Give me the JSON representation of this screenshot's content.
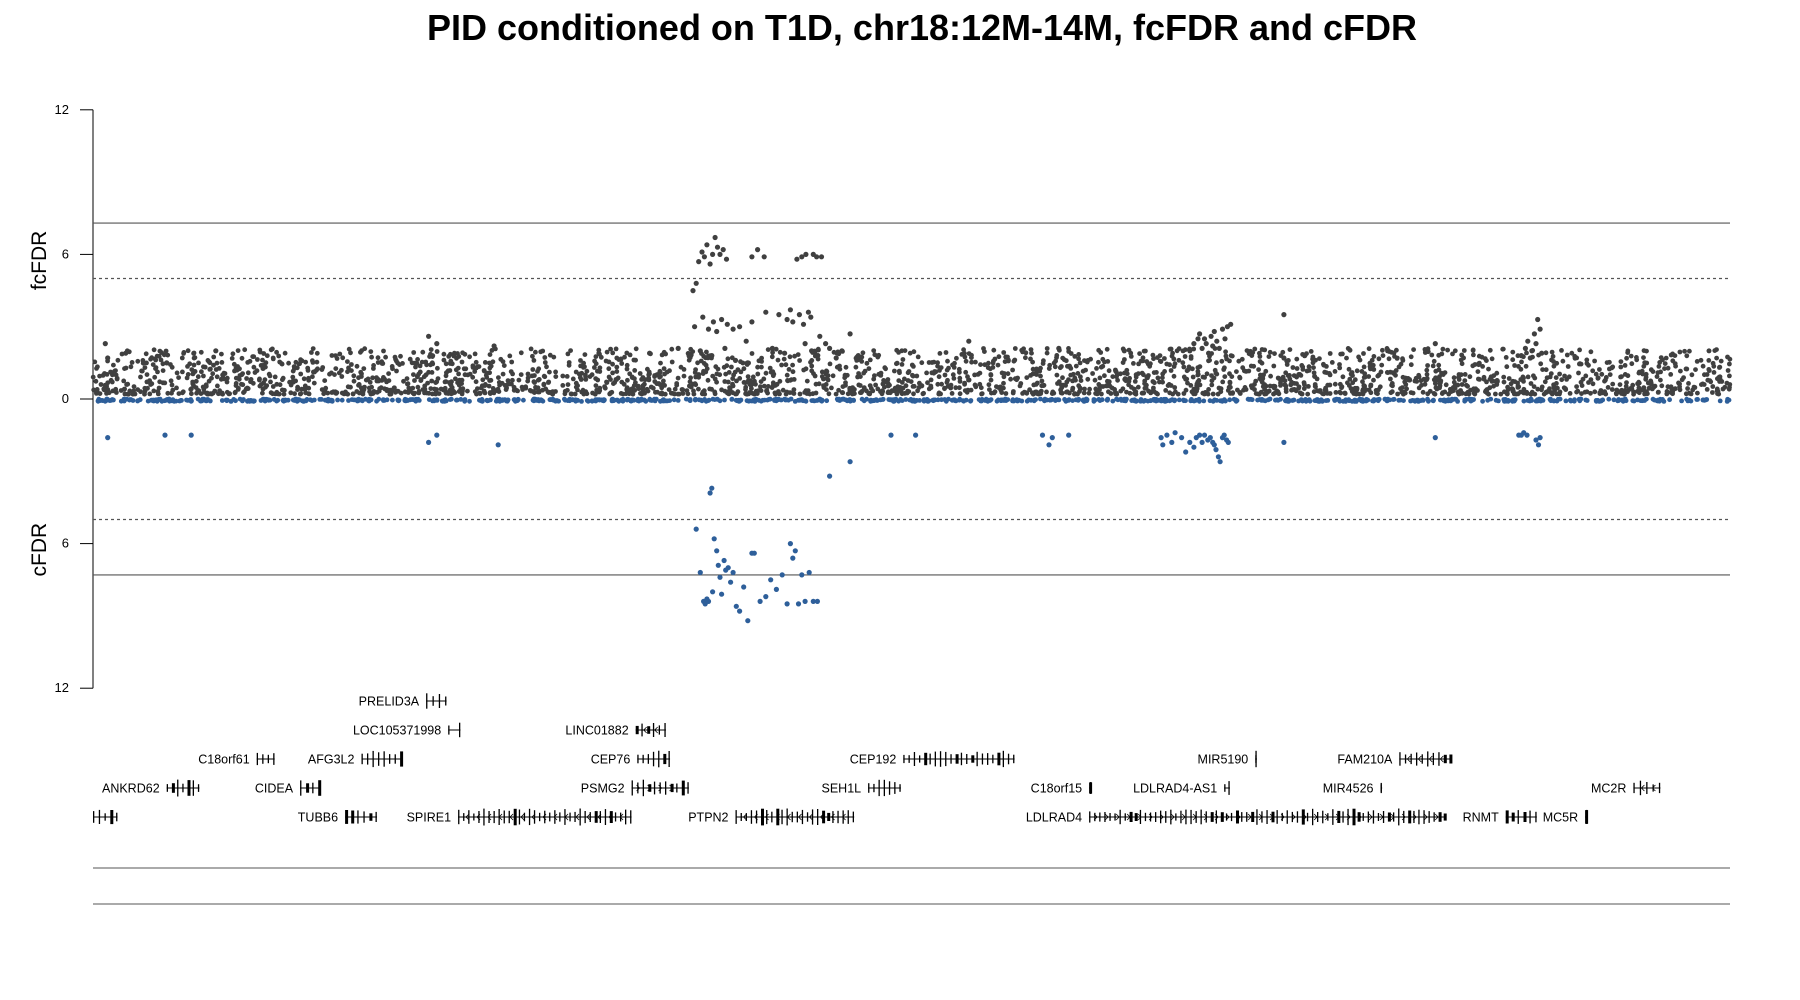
{
  "chart_data": {
    "type": "scatter",
    "title": "PID conditioned on T1D, chr18:12M-14M, fcFDR and cFDR",
    "region": {
      "chromosome": "chr18",
      "start": 12000000,
      "end": 14000000
    },
    "upper_panel": {
      "ylabel": "fcFDR",
      "ylim": [
        0,
        12
      ],
      "ticks": [
        0,
        6,
        12
      ],
      "color": "#404040"
    },
    "lower_panel": {
      "ylabel": "cFDR",
      "ylim": [
        0,
        12
      ],
      "ticks": [
        6,
        12
      ],
      "color": "#2e5f9a",
      "inverted": true
    },
    "thresholds": [
      {
        "y": 7.3,
        "style": "solid"
      },
      {
        "y": 5,
        "style": "dashed"
      }
    ],
    "grid": false,
    "legend": "none",
    "series": [
      {
        "name": "fcFDR",
        "background": {
          "max_y": 2.1,
          "baseline": 0.2
        },
        "points": [
          [
            12015000,
            2.3
          ],
          [
            12018000,
            1.7
          ],
          [
            12040000,
            1.9
          ],
          [
            12090000,
            1.5
          ],
          [
            12150000,
            2.0
          ],
          [
            12410000,
            2.6
          ],
          [
            12420000,
            2.3
          ],
          [
            12490000,
            2.2
          ],
          [
            12680000,
            1.9
          ],
          [
            12715000,
            2.1
          ],
          [
            12733000,
            4.5
          ],
          [
            12737000,
            4.8
          ],
          [
            12740000,
            5.7
          ],
          [
            12744000,
            6.1
          ],
          [
            12747000,
            5.9
          ],
          [
            12750000,
            6.4
          ],
          [
            12754000,
            5.6
          ],
          [
            12757000,
            6.0
          ],
          [
            12760000,
            6.7
          ],
          [
            12763000,
            6.3
          ],
          [
            12766000,
            6.0
          ],
          [
            12770000,
            6.2
          ],
          [
            12774000,
            5.8
          ],
          [
            12735000,
            3.0
          ],
          [
            12745000,
            3.4
          ],
          [
            12752000,
            2.9
          ],
          [
            12758000,
            3.2
          ],
          [
            12762000,
            2.8
          ],
          [
            12768000,
            3.3
          ],
          [
            12775000,
            3.1
          ],
          [
            12782000,
            2.9
          ],
          [
            12790000,
            3.0
          ],
          [
            12798000,
            2.4
          ],
          [
            12805000,
            3.2
          ],
          [
            12742000,
            2.0
          ],
          [
            12756000,
            1.8
          ],
          [
            12772000,
            2.1
          ],
          [
            12785000,
            1.6
          ],
          [
            12800000,
            1.5
          ],
          [
            12812000,
            6.2
          ],
          [
            12822000,
            3.6
          ],
          [
            12830000,
            2.1
          ],
          [
            12838000,
            3.5
          ],
          [
            12845000,
            1.9
          ],
          [
            12805000,
            5.9
          ],
          [
            12820000,
            5.9
          ],
          [
            12848000,
            3.3
          ],
          [
            12852000,
            3.7
          ],
          [
            12855000,
            3.2
          ],
          [
            12860000,
            5.8
          ],
          [
            12863000,
            3.5
          ],
          [
            12866000,
            5.9
          ],
          [
            12868000,
            3.1
          ],
          [
            12871000,
            6.0
          ],
          [
            12874000,
            3.6
          ],
          [
            12877000,
            3.4
          ],
          [
            12880000,
            6.0
          ],
          [
            12884000,
            5.9
          ],
          [
            12890000,
            5.9
          ],
          [
            12870000,
            2.3
          ],
          [
            12878000,
            2.0
          ],
          [
            12888000,
            2.6
          ],
          [
            12895000,
            2.3
          ],
          [
            12900000,
            2.1
          ],
          [
            12908000,
            1.7
          ],
          [
            12915000,
            2.0
          ],
          [
            12925000,
            2.7
          ],
          [
            12935000,
            1.8
          ],
          [
            13070000,
            2.4
          ],
          [
            13180000,
            2.1
          ],
          [
            13260000,
            2.0
          ],
          [
            13340000,
            2.0
          ],
          [
            13345000,
            2.3
          ],
          [
            13350000,
            2.5
          ],
          [
            13352000,
            2.7
          ],
          [
            13355000,
            2.1
          ],
          [
            13358000,
            2.5
          ],
          [
            13360000,
            2.3
          ],
          [
            13363000,
            1.9
          ],
          [
            13366000,
            2.6
          ],
          [
            13368000,
            2.2
          ],
          [
            13370000,
            2.8
          ],
          [
            13373000,
            2.4
          ],
          [
            13376000,
            2.1
          ],
          [
            13380000,
            2.9
          ],
          [
            13383000,
            2.5
          ],
          [
            13386000,
            3.0
          ],
          [
            13390000,
            3.1
          ],
          [
            13455000,
            3.5
          ],
          [
            13455000,
            1.7
          ],
          [
            13640000,
            2.3
          ],
          [
            13745000,
            1.8
          ],
          [
            13750000,
            2.1
          ],
          [
            13753000,
            2.4
          ],
          [
            13756000,
            1.7
          ],
          [
            13758000,
            2.0
          ],
          [
            13761000,
            2.7
          ],
          [
            13763000,
            2.3
          ],
          [
            13765000,
            3.3
          ],
          [
            13768000,
            2.9
          ],
          [
            13770000,
            1.9
          ]
        ]
      },
      {
        "name": "cFDR",
        "background": {
          "max_y": 0.1,
          "baseline": 0.0
        },
        "points": [
          [
            12018000,
            1.6
          ],
          [
            12088000,
            1.5
          ],
          [
            12120000,
            1.5
          ],
          [
            12410000,
            1.8
          ],
          [
            12420000,
            1.5
          ],
          [
            12495000,
            1.9
          ],
          [
            12737000,
            5.4
          ],
          [
            12742000,
            7.2
          ],
          [
            12746000,
            8.4
          ],
          [
            12748000,
            8.5
          ],
          [
            12750000,
            8.3
          ],
          [
            12752000,
            8.4
          ],
          [
            12754000,
            3.9
          ],
          [
            12756000,
            3.7
          ],
          [
            12757000,
            8.0
          ],
          [
            12759000,
            5.8
          ],
          [
            12762000,
            6.3
          ],
          [
            12764000,
            6.9
          ],
          [
            12766000,
            7.4
          ],
          [
            12768000,
            8.1
          ],
          [
            12771000,
            6.7
          ],
          [
            12773000,
            7.1
          ],
          [
            12776000,
            7.0
          ],
          [
            12779000,
            7.6
          ],
          [
            12782000,
            7.2
          ],
          [
            12786000,
            8.6
          ],
          [
            12790000,
            8.8
          ],
          [
            12795000,
            7.8
          ],
          [
            12800000,
            9.2
          ],
          [
            12805000,
            6.4
          ],
          [
            12808000,
            6.4
          ],
          [
            12815000,
            8.4
          ],
          [
            12822000,
            8.2
          ],
          [
            12828000,
            7.5
          ],
          [
            12835000,
            7.9
          ],
          [
            12842000,
            7.3
          ],
          [
            12848000,
            8.5
          ],
          [
            12852000,
            6.0
          ],
          [
            12855000,
            6.6
          ],
          [
            12858000,
            6.3
          ],
          [
            12862000,
            8.5
          ],
          [
            12866000,
            7.3
          ],
          [
            12870000,
            8.4
          ],
          [
            12875000,
            7.2
          ],
          [
            12880000,
            8.4
          ],
          [
            12885000,
            8.4
          ],
          [
            12900000,
            3.2
          ],
          [
            12925000,
            2.6
          ],
          [
            12975000,
            1.5
          ],
          [
            13005000,
            1.5
          ],
          [
            13160000,
            1.5
          ],
          [
            13168000,
            1.9
          ],
          [
            13172000,
            1.6
          ],
          [
            13192000,
            1.5
          ],
          [
            13305000,
            1.6
          ],
          [
            13307000,
            1.9
          ],
          [
            13312000,
            1.5
          ],
          [
            13318000,
            1.8
          ],
          [
            13322000,
            1.4
          ],
          [
            13330000,
            1.6
          ],
          [
            13335000,
            2.2
          ],
          [
            13340000,
            1.8
          ],
          [
            13345000,
            2.0
          ],
          [
            13348000,
            1.6
          ],
          [
            13352000,
            1.5
          ],
          [
            13355000,
            1.8
          ],
          [
            13358000,
            1.5
          ],
          [
            13362000,
            1.7
          ],
          [
            13365000,
            1.6
          ],
          [
            13368000,
            1.8
          ],
          [
            13370000,
            1.9
          ],
          [
            13372000,
            2.1
          ],
          [
            13375000,
            2.4
          ],
          [
            13377000,
            2.6
          ],
          [
            13380000,
            1.6
          ],
          [
            13382000,
            1.5
          ],
          [
            13385000,
            1.7
          ],
          [
            13387000,
            1.8
          ],
          [
            13455000,
            1.8
          ],
          [
            13640000,
            1.6
          ],
          [
            13742000,
            1.5
          ],
          [
            13745000,
            1.5
          ],
          [
            13748000,
            1.4
          ],
          [
            13752000,
            1.5
          ],
          [
            13763000,
            1.7
          ],
          [
            13766000,
            1.9
          ],
          [
            13768000,
            1.6
          ]
        ]
      }
    ]
  },
  "genes": [
    {
      "name": "ANKRD62",
      "start": 12090000,
      "end": 12130000,
      "row": 4,
      "strand": ""
    },
    {
      "name": "C18orf61",
      "start": 12200000,
      "end": 12222000,
      "row": 3,
      "strand": ""
    },
    {
      "name": "CIDEA",
      "start": 12253000,
      "end": 12277000,
      "row": 4,
      "strand": "+"
    },
    {
      "name": "TUBB6",
      "start": 12308000,
      "end": 12347000,
      "row": 5,
      "strand": ""
    },
    {
      "name": "AFG3L2",
      "start": 12328000,
      "end": 12377000,
      "row": 3,
      "strand": ""
    },
    {
      "name": "PRELID3A",
      "start": 12407000,
      "end": 12432000,
      "row": 1,
      "strand": ""
    },
    {
      "name": "LOC105371998",
      "start": 12434000,
      "end": 12449000,
      "row": 2,
      "strand": ""
    },
    {
      "name": "SPIRE1",
      "start": 12446000,
      "end": 12658000,
      "row": 5,
      "strand": "-"
    },
    {
      "name": "LINC01882",
      "start": 12663000,
      "end": 12700000,
      "row": 2,
      "strand": "-"
    },
    {
      "name": "CEP76",
      "start": 12665000,
      "end": 12705000,
      "row": 3,
      "strand": ""
    },
    {
      "name": "PSMG2",
      "start": 12658000,
      "end": 12728000,
      "row": 4,
      "strand": "+"
    },
    {
      "name": "PTPN2",
      "start": 12785000,
      "end": 12930000,
      "row": 5,
      "strand": "-"
    },
    {
      "name": "SEH1L",
      "start": 12947000,
      "end": 12987000,
      "row": 4,
      "strand": ""
    },
    {
      "name": "CEP192",
      "start": 12990000,
      "end": 13126000,
      "row": 3,
      "strand": ""
    },
    {
      "name": "C18orf15",
      "start": 13217000,
      "end": 13220000,
      "row": 4,
      "strand": ""
    },
    {
      "name": "LDLRAD4",
      "start": 13217000,
      "end": 13652000,
      "row": 5,
      "strand": "+"
    },
    {
      "name": "LDLRAD4-AS1",
      "start": 13382000,
      "end": 13389000,
      "row": 4,
      "strand": ""
    },
    {
      "name": "MIR5190",
      "start": 13420000,
      "end": 13422000,
      "row": 3,
      "strand": ""
    },
    {
      "name": "MIR4526",
      "start": 13573000,
      "end": 13575000,
      "row": 4,
      "strand": ""
    },
    {
      "name": "FAM210A",
      "start": 13596000,
      "end": 13659000,
      "row": 3,
      "strand": "-"
    },
    {
      "name": "RNMT",
      "start": 13726000,
      "end": 13764000,
      "row": 5,
      "strand": ""
    },
    {
      "name": "MC5R",
      "start": 13823000,
      "end": 13826000,
      "row": 5,
      "strand": ""
    },
    {
      "name": "MC2R",
      "start": 13882000,
      "end": 13915000,
      "row": 4,
      "strand": "-"
    }
  ],
  "extra_genes": [
    {
      "start": 12000000,
      "end": 12030000,
      "row": 5
    }
  ]
}
